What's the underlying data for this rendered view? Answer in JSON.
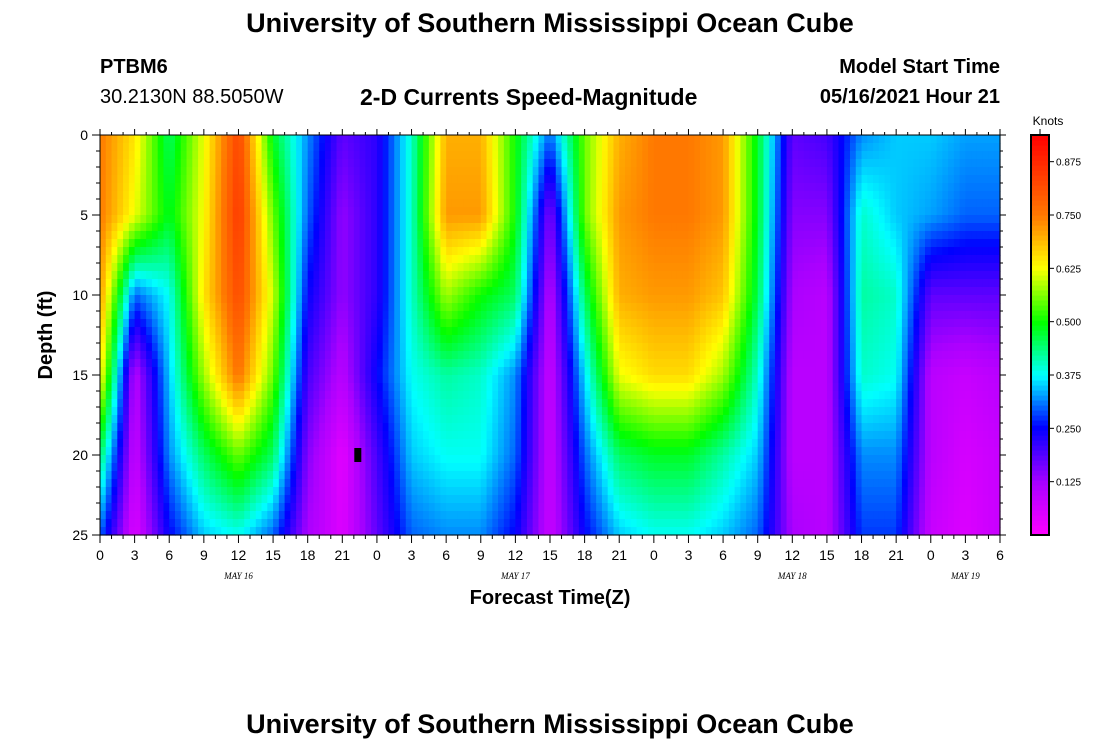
{
  "page": {
    "title_top": "University of Southern Mississippi Ocean Cube",
    "title_bottom": "University of Southern Mississippi Ocean Cube",
    "station_id": "PTBM6",
    "station_location": "30.2130N  88.5050W",
    "plot_title": "2-D Currents Speed-Magnitude",
    "model_start_label": "Model Start Time",
    "model_start_value": "05/16/2021 Hour 21"
  },
  "colors": {
    "background": "#ffffff",
    "text": "#000000",
    "marker": "#000000"
  },
  "chart_data": {
    "type": "heatmap",
    "title": "2-D Currents Speed-Magnitude",
    "xlabel": "Forecast Time(Z)",
    "ylabel": "Depth (ft)",
    "x_tick_labels": [
      "0",
      "3",
      "6",
      "9",
      "12",
      "15",
      "18",
      "21",
      "0",
      "3",
      "6",
      "9",
      "12",
      "15",
      "18",
      "21",
      "0",
      "3",
      "6",
      "9",
      "12",
      "15",
      "18",
      "21",
      "0",
      "3",
      "6"
    ],
    "xlim_hours": [
      0,
      78
    ],
    "y_ticks": [
      0,
      5,
      10,
      15,
      20,
      25
    ],
    "ylim": [
      0,
      25
    ],
    "y_inverted": true,
    "day_labels": [
      {
        "hour": 12,
        "text": "MAY 16"
      },
      {
        "hour": 36,
        "text": "MAY 17"
      },
      {
        "hour": 60,
        "text": "MAY 18"
      },
      {
        "hour": 75,
        "text": "MAY 19"
      }
    ],
    "colorbar": {
      "title": "Knots",
      "min": 0,
      "max": 0.9375,
      "tick_values": [
        0.125,
        0.25,
        0.375,
        0.5,
        0.625,
        0.75,
        0.875
      ],
      "tick_labels": [
        "0.125",
        "0.250",
        "0.375",
        "0.500",
        "0.625",
        "0.750",
        "0.875"
      ]
    },
    "marker": {
      "hour": 22.3,
      "depth": 20
    },
    "depth_levels_ft": [
      0,
      5,
      10,
      15,
      20,
      25
    ],
    "time_hours": [
      0,
      3,
      6,
      9,
      12,
      15,
      18,
      21,
      24,
      27,
      30,
      33,
      36,
      39,
      42,
      45,
      48,
      51,
      54,
      57,
      60,
      63,
      66,
      69,
      72,
      75,
      78
    ],
    "speed_knots": [
      [
        0.75,
        0.65,
        0.45,
        0.62,
        0.83,
        0.48,
        0.32,
        0.18,
        0.22,
        0.4,
        0.7,
        0.7,
        0.5,
        0.3,
        0.55,
        0.7,
        0.75,
        0.75,
        0.72,
        0.48,
        0.18,
        0.2,
        0.32,
        0.35,
        0.35,
        0.33,
        0.33
      ],
      [
        0.75,
        0.62,
        0.48,
        0.63,
        0.85,
        0.55,
        0.3,
        0.14,
        0.22,
        0.4,
        0.72,
        0.72,
        0.5,
        0.15,
        0.55,
        0.72,
        0.75,
        0.75,
        0.72,
        0.48,
        0.15,
        0.15,
        0.4,
        0.35,
        0.33,
        0.3,
        0.3
      ],
      [
        0.72,
        0.3,
        0.38,
        0.65,
        0.82,
        0.6,
        0.25,
        0.14,
        0.22,
        0.4,
        0.58,
        0.5,
        0.45,
        0.1,
        0.45,
        0.7,
        0.72,
        0.72,
        0.68,
        0.46,
        0.12,
        0.1,
        0.42,
        0.4,
        0.18,
        0.18,
        0.18
      ],
      [
        0.65,
        0.1,
        0.35,
        0.58,
        0.76,
        0.55,
        0.2,
        0.1,
        0.25,
        0.38,
        0.42,
        0.4,
        0.32,
        0.08,
        0.36,
        0.62,
        0.66,
        0.66,
        0.58,
        0.4,
        0.1,
        0.1,
        0.4,
        0.38,
        0.1,
        0.08,
        0.1
      ],
      [
        0.45,
        0.08,
        0.32,
        0.45,
        0.55,
        0.45,
        0.15,
        0.04,
        0.2,
        0.35,
        0.38,
        0.38,
        0.3,
        0.08,
        0.3,
        0.45,
        0.48,
        0.48,
        0.42,
        0.35,
        0.1,
        0.1,
        0.32,
        0.32,
        0.1,
        0.06,
        0.08
      ],
      [
        0.3,
        0.05,
        0.25,
        0.35,
        0.38,
        0.3,
        0.12,
        0.05,
        0.18,
        0.3,
        0.32,
        0.32,
        0.25,
        0.08,
        0.25,
        0.35,
        0.38,
        0.38,
        0.35,
        0.3,
        0.12,
        0.1,
        0.28,
        0.28,
        0.08,
        0.05,
        0.08
      ]
    ]
  }
}
